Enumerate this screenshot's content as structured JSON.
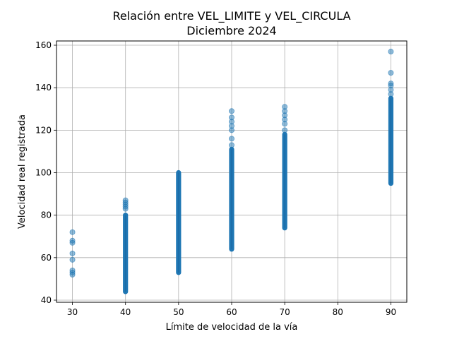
{
  "chart_data": {
    "type": "scatter",
    "title": "Relación entre VEL_LIMITE y VEL_CIRCULA",
    "subtitle": "Diciembre 2024",
    "xlabel": "Límite de velocidad de la vía",
    "ylabel": "Velocidad real registrada",
    "xlim": [
      27,
      93
    ],
    "ylim": [
      39,
      162
    ],
    "xticks": [
      30,
      40,
      50,
      60,
      70,
      80,
      90
    ],
    "yticks": [
      40,
      60,
      80,
      100,
      120,
      140,
      160
    ],
    "grid": true,
    "point_color": "#1f77b4",
    "point_alpha": 0.5,
    "series": [
      {
        "x": 30,
        "dense_range": null,
        "points": [
          52,
          53,
          54,
          59,
          62,
          67,
          68,
          72
        ]
      },
      {
        "x": 40,
        "dense_range": [
          44,
          80
        ],
        "points": [
          83,
          84,
          85,
          86,
          87
        ]
      },
      {
        "x": 50,
        "dense_range": [
          53,
          100
        ],
        "points": []
      },
      {
        "x": 60,
        "dense_range": [
          64,
          111
        ],
        "points": [
          113,
          116,
          120,
          122,
          124,
          126,
          129
        ]
      },
      {
        "x": 70,
        "dense_range": [
          74,
          118
        ],
        "points": [
          120,
          123,
          125,
          127,
          129,
          131
        ]
      },
      {
        "x": 90,
        "dense_range": [
          95,
          135
        ],
        "points": [
          137,
          139,
          141,
          142,
          147,
          157
        ]
      }
    ]
  }
}
